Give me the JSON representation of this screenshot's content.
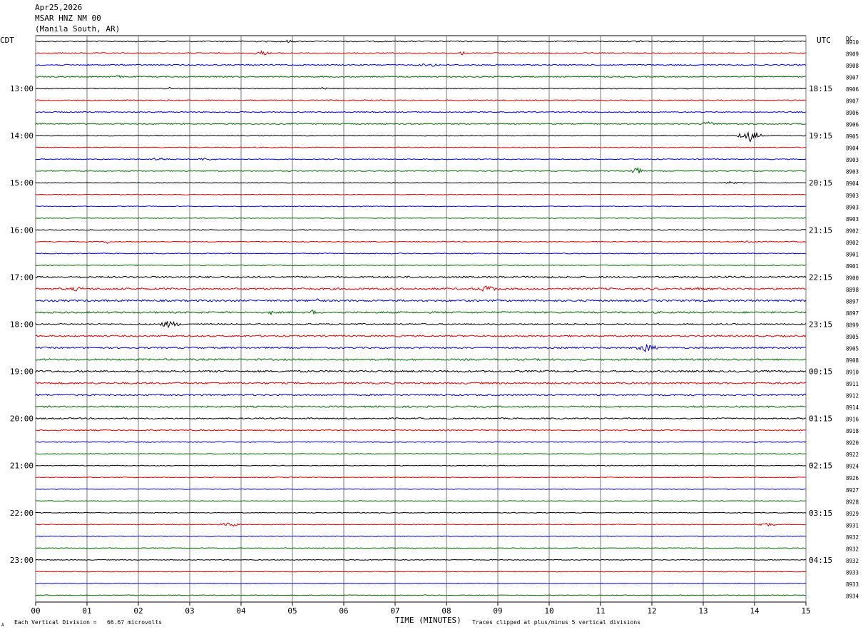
{
  "header": {
    "date": "Apr25,2026",
    "station": "MSAR HNZ NM 00",
    "location": "(Manila South, AR)"
  },
  "left_axis_title": "CDT",
  "right_axis_title": "UTC",
  "dc_title": "DC",
  "footer": {
    "scale_note": "Each Vertical Division =   66.67 microvolts",
    "x_title": "TIME (MINUTES)",
    "clip_note": "Traces clipped at plus/minus 5 vertical divisions",
    "corner_mark": "A"
  },
  "chart_data": {
    "type": "line",
    "description_free": true,
    "x_ticks": [
      "00",
      "01",
      "02",
      "03",
      "04",
      "05",
      "06",
      "07",
      "08",
      "09",
      "10",
      "11",
      "12",
      "13",
      "14",
      "15"
    ],
    "xlim": [
      0,
      15
    ],
    "trace_colors": [
      "#000000",
      "#dd0000",
      "#0000cc",
      "#006600"
    ],
    "trace_count": 48,
    "left_hour_labels": [
      "13:00",
      "14:00",
      "15:00",
      "16:00",
      "17:00",
      "18:00",
      "19:00",
      "20:00",
      "21:00",
      "22:00",
      "23:00"
    ],
    "left_hour_label_rows": [
      4,
      8,
      12,
      16,
      20,
      24,
      28,
      32,
      36,
      40,
      44
    ],
    "right_hour_labels": [
      "18:15",
      "19:15",
      "20:15",
      "21:15",
      "22:15",
      "23:15",
      "00:15",
      "01:15",
      "02:15",
      "03:15",
      "04:15"
    ],
    "dc_offsets": [
      "8910",
      "8909",
      "8908",
      "8907",
      "8906",
      "8907",
      "8906",
      "8906",
      "8905",
      "8904",
      "8903",
      "8903",
      "8904",
      "8903",
      "8903",
      "8903",
      "8902",
      "8902",
      "8901",
      "8901",
      "8900",
      "8898",
      "8897",
      "8897",
      "8899",
      "8905",
      "8905",
      "8908",
      "8910",
      "8911",
      "8912",
      "8914",
      "8916",
      "8918",
      "8920",
      "8922",
      "8924",
      "8926",
      "8927",
      "8928",
      "8929",
      "8931",
      "8932",
      "8932",
      "8932",
      "8933",
      "8933",
      "8934"
    ],
    "trace_noise": [
      0.8,
      0.8,
      0.8,
      0.8,
      0.7,
      0.7,
      0.7,
      0.8,
      0.6,
      0.6,
      0.6,
      0.6,
      0.5,
      0.5,
      0.5,
      0.5,
      0.6,
      0.6,
      0.6,
      0.6,
      1.2,
      1.3,
      1.3,
      1.2,
      1.0,
      1.1,
      1.1,
      1.2,
      1.3,
      1.2,
      1.2,
      1.1,
      0.9,
      0.8,
      0.6,
      0.6,
      0.5,
      0.5,
      0.5,
      0.5,
      0.5,
      0.5,
      0.5,
      0.5,
      0.5,
      0.5,
      0.5,
      0.5
    ],
    "events": [
      {
        "trace": 0,
        "minute": 4.9,
        "amp": 2,
        "width": 0.3
      },
      {
        "trace": 0,
        "minute": 11.8,
        "amp": 2,
        "width": 0.3
      },
      {
        "trace": 1,
        "minute": 4.4,
        "amp": 3,
        "width": 0.3
      },
      {
        "trace": 1,
        "minute": 8.3,
        "amp": 3,
        "width": 0.1
      },
      {
        "trace": 2,
        "minute": 7.7,
        "amp": 2.5,
        "width": 0.4
      },
      {
        "trace": 3,
        "minute": 1.6,
        "amp": 2,
        "width": 0.3
      },
      {
        "trace": 4,
        "minute": 2.6,
        "amp": 2,
        "width": 0.1
      },
      {
        "trace": 4,
        "minute": 5.6,
        "amp": 2,
        "width": 0.2
      },
      {
        "trace": 6,
        "minute": 9.7,
        "amp": 1.5,
        "width": 0.1
      },
      {
        "trace": 7,
        "minute": 13.1,
        "amp": 3,
        "width": 0.3
      },
      {
        "trace": 8,
        "minute": 13.9,
        "amp": 9,
        "width": 0.3
      },
      {
        "trace": 10,
        "minute": 2.4,
        "amp": 2.5,
        "width": 0.3
      },
      {
        "trace": 10,
        "minute": 3.3,
        "amp": 2,
        "width": 0.4
      },
      {
        "trace": 11,
        "minute": 11.7,
        "amp": 6,
        "width": 0.15
      },
      {
        "trace": 12,
        "minute": 13.6,
        "amp": 2.5,
        "width": 0.3
      },
      {
        "trace": 17,
        "minute": 1.4,
        "amp": 3,
        "width": 0.1
      },
      {
        "trace": 17,
        "minute": 13.9,
        "amp": 2.5,
        "width": 0.3
      },
      {
        "trace": 21,
        "minute": 0.8,
        "amp": 3,
        "width": 0.4
      },
      {
        "trace": 21,
        "minute": 8.8,
        "amp": 5,
        "width": 0.3
      },
      {
        "trace": 21,
        "minute": 12.9,
        "amp": 4,
        "width": 0.1
      },
      {
        "trace": 22,
        "minute": 5.5,
        "amp": 6,
        "width": 0.08
      },
      {
        "trace": 23,
        "minute": 4.6,
        "amp": 4,
        "width": 0.1
      },
      {
        "trace": 23,
        "minute": 5.4,
        "amp": 4,
        "width": 0.1
      },
      {
        "trace": 24,
        "minute": 2.6,
        "amp": 5,
        "width": 0.3
      },
      {
        "trace": 26,
        "minute": 11.9,
        "amp": 6,
        "width": 0.3
      },
      {
        "trace": 41,
        "minute": 3.8,
        "amp": 3,
        "width": 0.3
      },
      {
        "trace": 41,
        "minute": 14.2,
        "amp": 3,
        "width": 0.3
      }
    ]
  }
}
